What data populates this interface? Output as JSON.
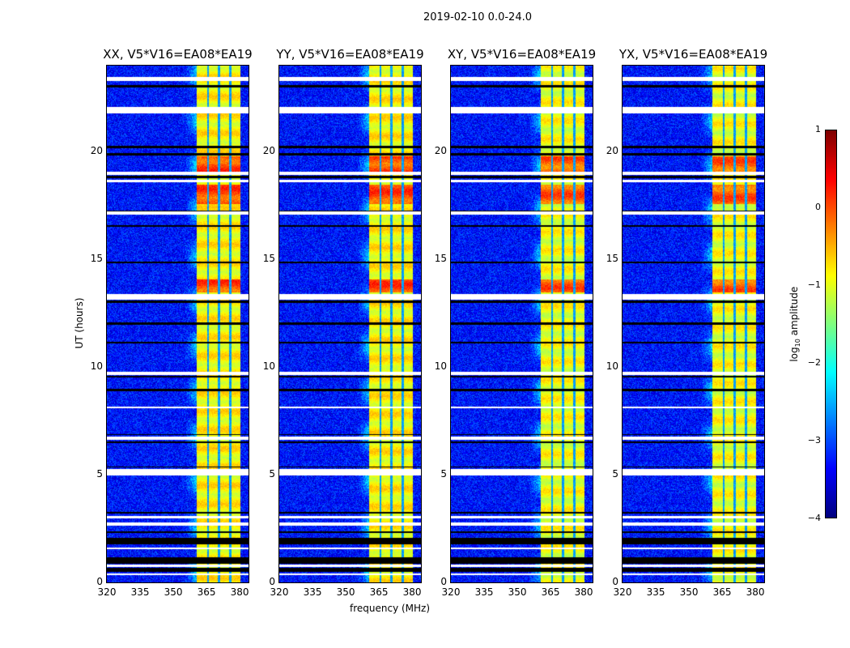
{
  "figure_title": "2019-02-10 0.0-24.0",
  "chart_data": {
    "type": "heatmap",
    "title": "2019-02-10 0.0-24.0",
    "xlabel": "frequency (MHz)",
    "ylabel": "UT (hours)",
    "xlim": [
      320,
      384
    ],
    "ylim": [
      0,
      24
    ],
    "xticks": [
      "320",
      "335",
      "350",
      "365",
      "380"
    ],
    "xtick_values": [
      320,
      335,
      350,
      365,
      380
    ],
    "yticks": [
      "0",
      "5",
      "10",
      "15",
      "20"
    ],
    "ytick_values": [
      0,
      5,
      10,
      15,
      20
    ],
    "panels": [
      {
        "title": "XX, V5*V16=EA08*EA19"
      },
      {
        "title": "YY, V5*V16=EA08*EA19"
      },
      {
        "title": "XY, V5*V16=EA08*EA19"
      },
      {
        "title": "YX, V5*V16=EA08*EA19"
      }
    ],
    "colormap": "jet",
    "colorbar": {
      "label": "log10 amplitude",
      "label_main": "log",
      "label_sub": "10",
      "label_rest": " amplitude",
      "range": [
        -4,
        1
      ],
      "ticks": [
        "1",
        "0",
        "−1",
        "−2",
        "−3",
        "−4"
      ],
      "tick_values": [
        1,
        0,
        -1,
        -2,
        -3,
        -4
      ]
    },
    "signal_band_mhz": [
      360.5,
      380
    ],
    "channel_gaps_mhz": [
      365.5,
      370.5,
      375.5
    ],
    "strong_intervals_hours": [
      [
        17.6,
        18.5
      ],
      [
        19.1,
        19.8
      ],
      [
        13.5,
        14.1
      ]
    ],
    "flagged_white_hours": [
      [
        23.3,
        23.5
      ],
      [
        21.8,
        22.1
      ],
      [
        18.95,
        19.1
      ],
      [
        18.6,
        18.7
      ],
      [
        17.1,
        17.25
      ],
      [
        13.15,
        13.4
      ],
      [
        9.65,
        9.8
      ],
      [
        8.1,
        8.2
      ],
      [
        6.65,
        6.8
      ],
      [
        5.0,
        5.3
      ],
      [
        3.0,
        3.1
      ],
      [
        2.65,
        2.8
      ],
      [
        1.55,
        1.65
      ],
      [
        0.75,
        0.85
      ],
      [
        0.35,
        0.45
      ]
    ],
    "flagged_black_hours": [
      [
        23.0,
        23.1
      ],
      [
        21.95,
        22.0
      ],
      [
        20.2,
        20.3
      ],
      [
        19.85,
        19.95
      ],
      [
        18.8,
        18.9
      ],
      [
        17.25,
        17.3
      ],
      [
        16.55,
        16.6
      ],
      [
        14.85,
        14.9
      ],
      [
        13.0,
        13.1
      ],
      [
        12.0,
        12.1
      ],
      [
        11.1,
        11.2
      ],
      [
        9.55,
        9.6
      ],
      [
        8.9,
        9.0
      ],
      [
        6.85,
        6.9
      ],
      [
        6.5,
        6.55
      ],
      [
        5.35,
        5.4
      ],
      [
        3.2,
        3.3
      ],
      [
        2.3,
        2.4
      ],
      [
        1.8,
        2.1
      ],
      [
        0.9,
        1.2
      ],
      [
        0.5,
        0.7
      ]
    ]
  }
}
